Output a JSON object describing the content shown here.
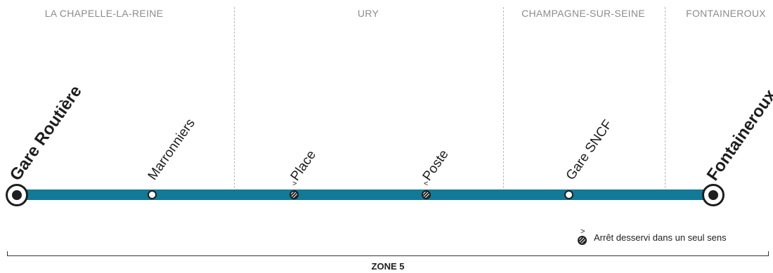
{
  "communes": [
    {
      "name": "LA CHAPELLE-LA-REINE"
    },
    {
      "name": "URY"
    },
    {
      "name": "CHAMPAGNE-SUR-SEINE"
    },
    {
      "name": "FONTAINEROUX"
    }
  ],
  "stops": [
    {
      "name": "Gare Routière",
      "type": "terminus"
    },
    {
      "name": "Marronniers",
      "type": "regular"
    },
    {
      "name": "Place",
      "type": "one-way",
      "direction_symbol": ">"
    },
    {
      "name": "Poste",
      "type": "one-way",
      "direction_symbol": "<"
    },
    {
      "name": "Gare SNCF",
      "type": "regular"
    },
    {
      "name": "Fontaineroux",
      "type": "terminus"
    }
  ],
  "legend": {
    "symbol": ">",
    "text": "Arrêt desservi dans un seul sens"
  },
  "zone": {
    "label": "ZONE 5"
  },
  "colors": {
    "line": "#127a96",
    "stop_outline": "#1e1e1e",
    "commune_text": "#8c8c8c",
    "divider": "#b9b9b9"
  }
}
